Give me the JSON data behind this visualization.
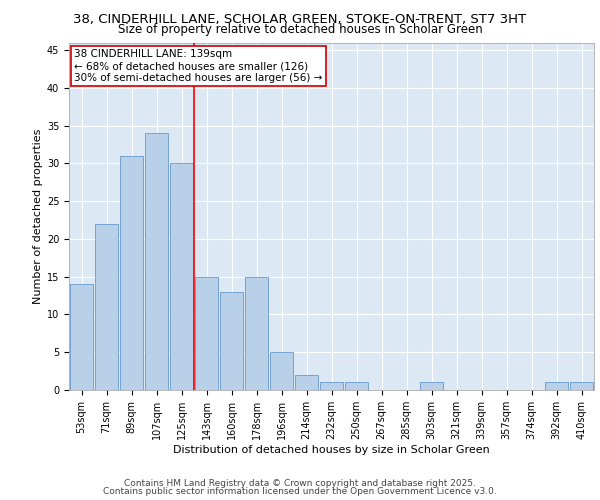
{
  "title_line1": "38, CINDERHILL LANE, SCHOLAR GREEN, STOKE-ON-TRENT, ST7 3HT",
  "title_line2": "Size of property relative to detached houses in Scholar Green",
  "xlabel": "Distribution of detached houses by size in Scholar Green",
  "ylabel": "Number of detached properties",
  "bar_color": "#b8d0e8",
  "bar_edge_color": "#6699cc",
  "background_color": "#dce9f5",
  "grid_color": "#ffffff",
  "categories": [
    "53sqm",
    "71sqm",
    "89sqm",
    "107sqm",
    "125sqm",
    "143sqm",
    "160sqm",
    "178sqm",
    "196sqm",
    "214sqm",
    "232sqm",
    "250sqm",
    "267sqm",
    "285sqm",
    "303sqm",
    "321sqm",
    "339sqm",
    "357sqm",
    "374sqm",
    "392sqm",
    "410sqm"
  ],
  "values": [
    14,
    22,
    31,
    34,
    30,
    15,
    13,
    15,
    5,
    2,
    1,
    1,
    0,
    0,
    1,
    0,
    0,
    0,
    0,
    1,
    1
  ],
  "ylim": [
    0,
    46
  ],
  "yticks": [
    0,
    5,
    10,
    15,
    20,
    25,
    30,
    35,
    40,
    45
  ],
  "red_line_index": 5,
  "annotation_text": "38 CINDERHILL LANE: 139sqm\n← 68% of detached houses are smaller (126)\n30% of semi-detached houses are larger (56) →",
  "annotation_box_color": "#ffffff",
  "annotation_box_edge_color": "#cc0000",
  "footer_line1": "Contains HM Land Registry data © Crown copyright and database right 2025.",
  "footer_line2": "Contains public sector information licensed under the Open Government Licence v3.0.",
  "title_fontsize": 9.5,
  "subtitle_fontsize": 8.5,
  "xlabel_fontsize": 8,
  "ylabel_fontsize": 8,
  "tick_fontsize": 7,
  "annotation_fontsize": 7.5,
  "footer_fontsize": 6.5
}
